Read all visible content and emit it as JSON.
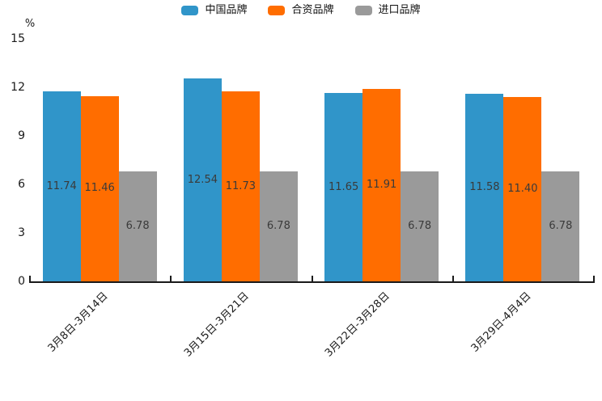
{
  "chart_data": {
    "type": "bar",
    "title": "",
    "xlabel": "",
    "ylabel": "%",
    "categories": [
      "3月8日-3月14日",
      "3月15日-3月21日",
      "3月22日-3月28日",
      "3月29日-4月4日"
    ],
    "series": [
      {
        "name": "中国品牌",
        "color": "#3095C9",
        "values": [
          11.74,
          12.54,
          11.65,
          11.58
        ]
      },
      {
        "name": "合资品牌",
        "color": "#FF6D00",
        "values": [
          11.46,
          11.73,
          11.91,
          11.4
        ]
      },
      {
        "name": "进口品牌",
        "color": "#9A9A9A",
        "values": [
          6.78,
          6.78,
          6.78,
          6.78
        ]
      }
    ],
    "y_ticks": [
      0,
      3,
      6,
      9,
      12,
      15
    ],
    "ylim": [
      0,
      15
    ],
    "legend_position": "top",
    "grid": false,
    "value_labels": true,
    "value_label_decimals": 2,
    "axis_color": "#1a1a1a"
  }
}
